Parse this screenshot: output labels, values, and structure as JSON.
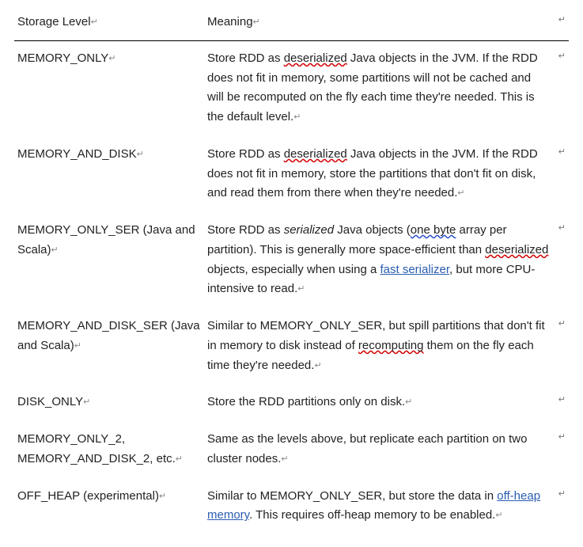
{
  "columns": {
    "level": "Storage Level",
    "meaning": "Meaning"
  },
  "marks": {
    "para": "↵"
  },
  "rows": [
    {
      "level": "MEMORY_ONLY",
      "m_pre1": "Store RDD as ",
      "m_spell1": "deserialized",
      "m_post1": " Java objects in the JVM. If the RDD does not fit in memory, some partitions will not be cached and will be recomputed on the fly each time they're needed. This is the default level."
    },
    {
      "level": "MEMORY_AND_DISK",
      "m_pre1": "Store RDD as ",
      "m_spell1": "deserialized",
      "m_post1": " Java objects in the JVM. If the RDD does not fit in memory, store the partitions that don't fit on disk, and read them from there when they're needed."
    },
    {
      "level": "MEMORY_ONLY_SER (Java and Scala)",
      "m_pre1": "Store RDD as ",
      "m_ital": "serialized",
      "m_mid1": " Java objects (",
      "m_blue1": "one byte",
      "m_mid2": " array per partition). This is generally more space-efficient than ",
      "m_spell1": "deserialized",
      "m_mid3": " objects, especially when using a ",
      "m_link1": "fast serializer",
      "m_post1": ", but more CPU-intensive to read."
    },
    {
      "level": "MEMORY_AND_DISK_SER (Java and Scala)",
      "m_pre1": "Similar to MEMORY_ONLY_SER, but spill partitions that don't fit in memory to disk instead of ",
      "m_spell1": "recomputing",
      "m_post1": " them on the fly each time they're needed."
    },
    {
      "level": "DISK_ONLY",
      "m_pre1": "Store the RDD partitions only on disk."
    },
    {
      "level": "MEMORY_ONLY_2, MEMORY_AND_DISK_2, etc.",
      "m_pre1": "Same as the levels above, but replicate each partition on two cluster nodes."
    },
    {
      "level": "OFF_HEAP (experimental)",
      "m_pre1": "Similar to MEMORY_ONLY_SER, but store the data in ",
      "m_link1": "off-heap memory",
      "m_post1": ". This requires off-heap memory to be enabled."
    }
  ]
}
